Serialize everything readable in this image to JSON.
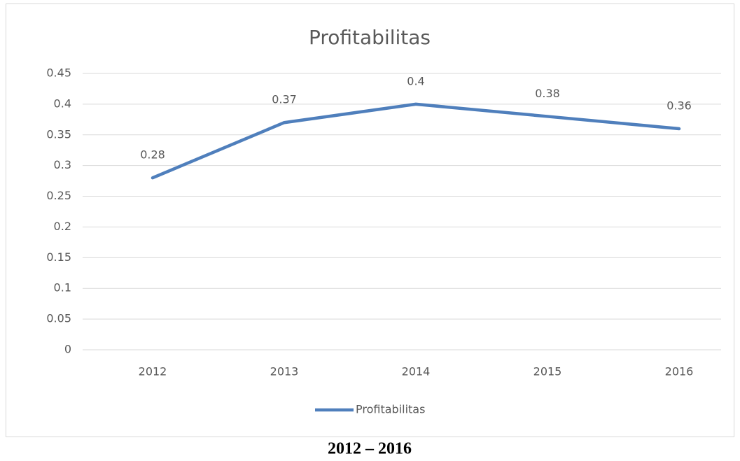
{
  "chart_data": {
    "type": "line",
    "title": "Profitabilitas",
    "categories": [
      "2012",
      "2013",
      "2014",
      "2015",
      "2016"
    ],
    "series": [
      {
        "name": "Profitabilitas",
        "color": "#4f7fbc",
        "values": [
          0.28,
          0.37,
          0.4,
          0.38,
          0.36
        ]
      }
    ],
    "ylim": [
      0,
      0.45
    ],
    "yticks": [
      0,
      0.05,
      0.1,
      0.15,
      0.2,
      0.25,
      0.3,
      0.35,
      0.4,
      0.45
    ],
    "grid": true,
    "legend": "bottom",
    "data_labels": true
  },
  "caption": "2012 – 2016"
}
